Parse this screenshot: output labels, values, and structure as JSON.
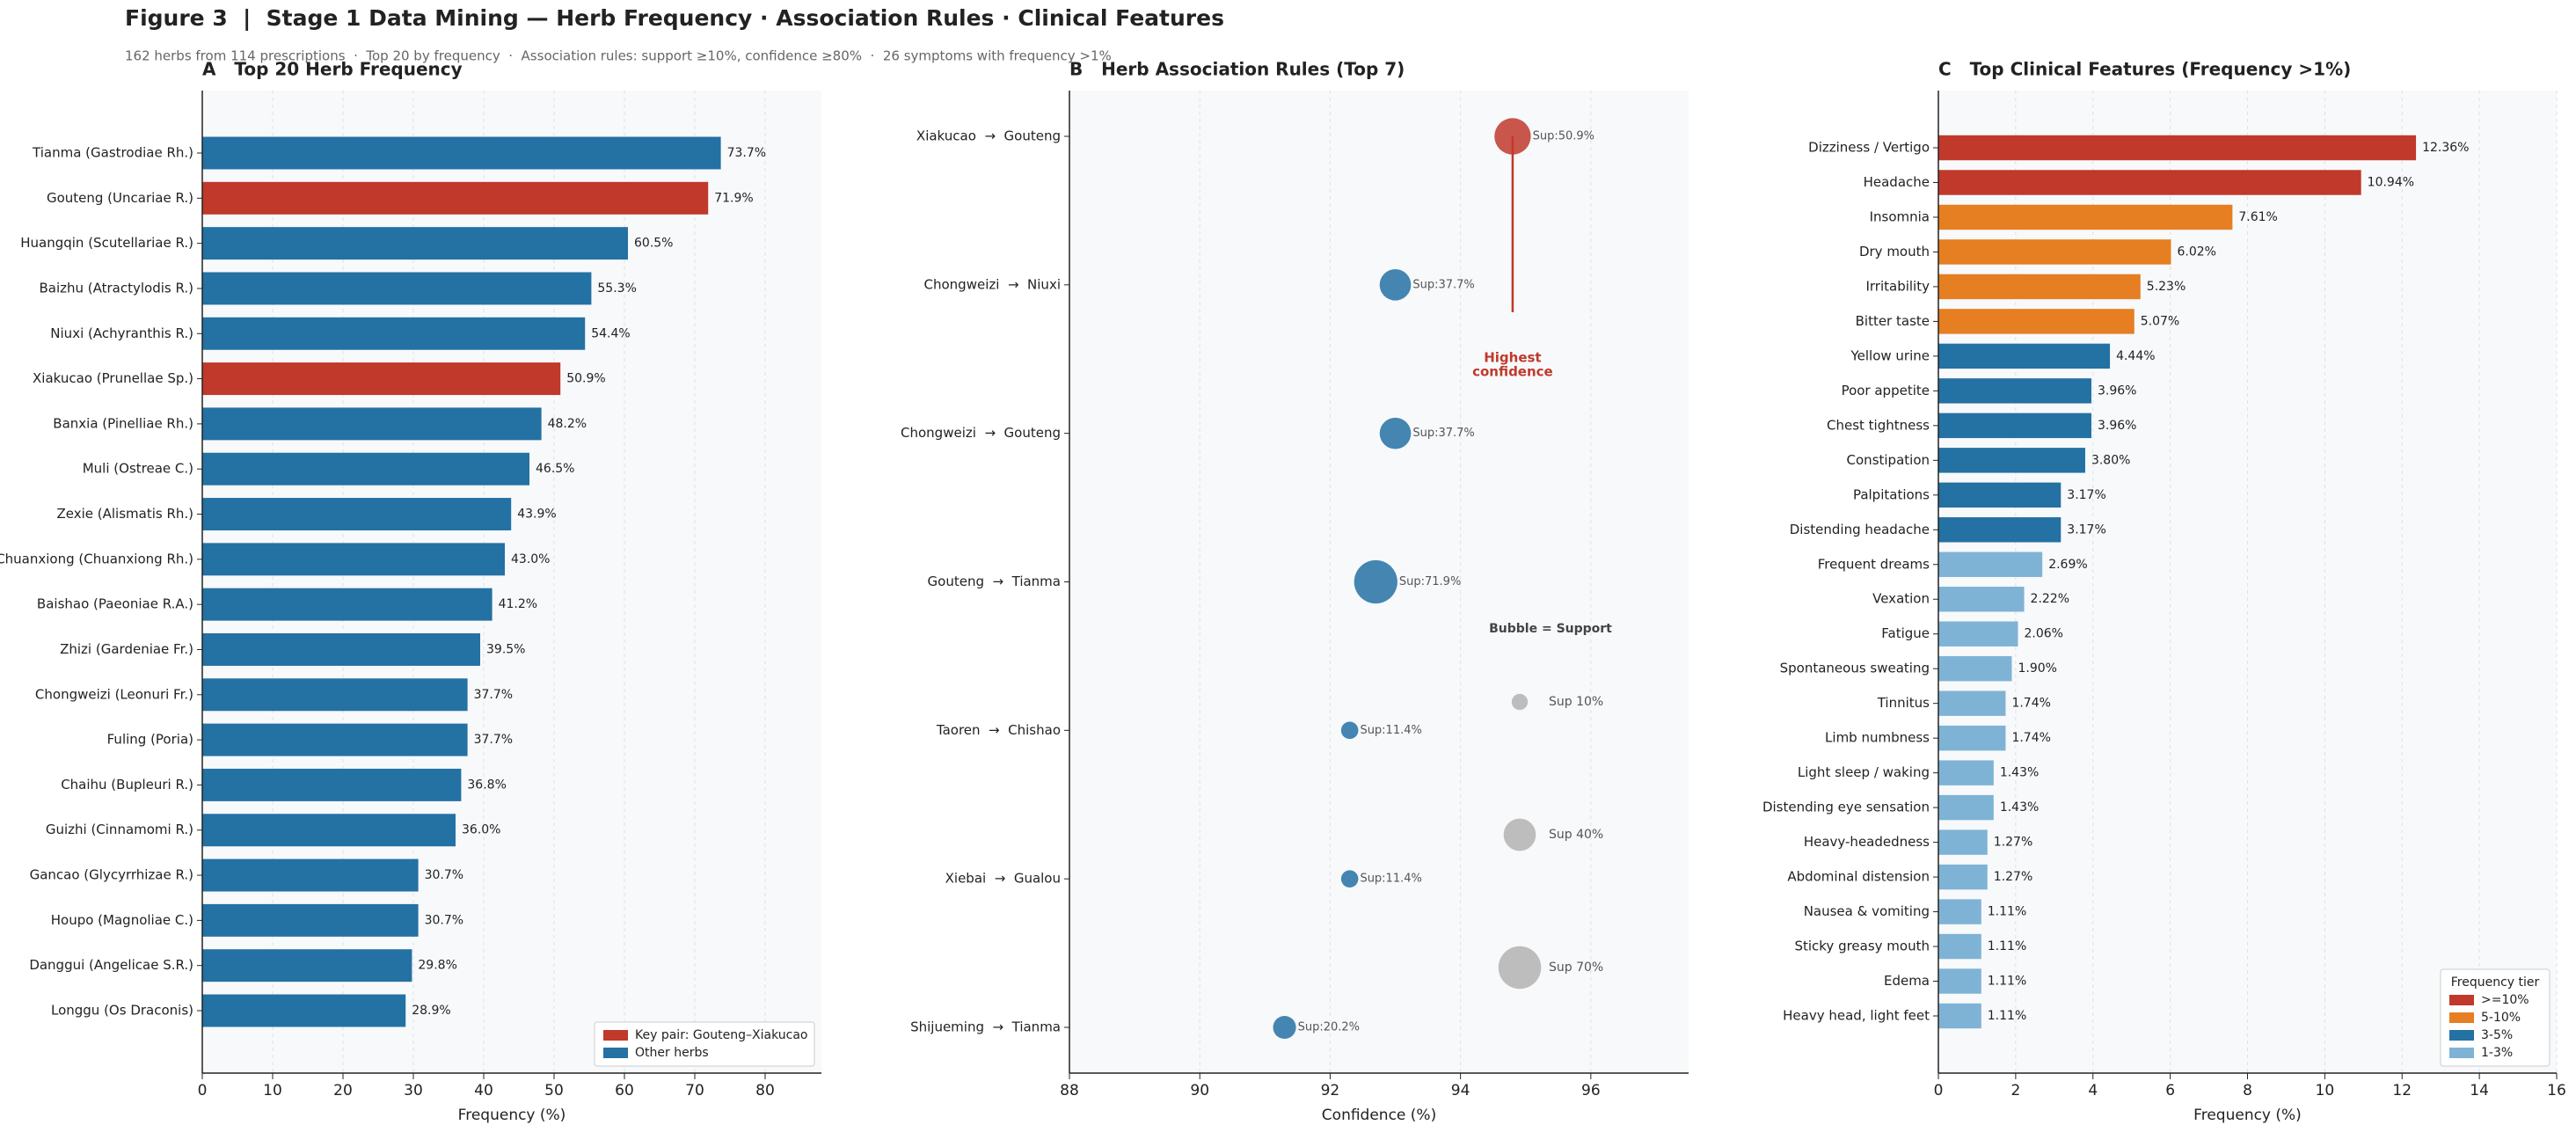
{
  "title": "Figure 3  |  Stage 1 Data Mining — Herb Frequency · Association Rules · Clinical Features",
  "subtitle": "162 herbs from 114 prescriptions  ·  Top 20 by frequency  ·  Association rules: support ≥10%, confidence ≥80%  ·  26 symptoms with frequency >1%",
  "chart_data": [
    {
      "type": "barh",
      "title": "A   Top 20 Herb Frequency",
      "xlabel": "Frequency (%)",
      "categories": [
        "Tianma (Gastrodiae Rh.)",
        "Gouteng (Uncariae R.)",
        "Huangqin (Scutellariae R.)",
        "Baizhu (Atractylodis R.)",
        "Niuxi (Achyranthis R.)",
        "Xiakucao (Prunellae Sp.)",
        "Banxia (Pinelliae Rh.)",
        "Muli (Ostreae C.)",
        "Zexie (Alismatis Rh.)",
        "Chuanxiong (Chuanxiong Rh.)",
        "Baishao (Paeoniae R.A.)",
        "Zhizi (Gardeniae Fr.)",
        "Chongweizi (Leonuri Fr.)",
        "Fuling (Poria)",
        "Chaihu (Bupleuri R.)",
        "Guizhi (Cinnamomi R.)",
        "Gancao (Glycyrrhizae R.)",
        "Houpo (Magnoliae C.)",
        "Danggui (Angelicae S.R.)",
        "Longgu (Os Draconis)"
      ],
      "values": [
        73.7,
        71.9,
        60.5,
        55.3,
        54.4,
        50.9,
        48.2,
        46.5,
        43.9,
        43.0,
        41.2,
        39.5,
        37.7,
        37.7,
        36.8,
        36.0,
        30.7,
        30.7,
        29.8,
        28.9
      ],
      "value_labels": [
        "73.7%",
        "71.9%",
        "60.5%",
        "55.3%",
        "54.4%",
        "50.9%",
        "48.2%",
        "46.5%",
        "43.9%",
        "43.0%",
        "41.2%",
        "39.5%",
        "37.7%",
        "37.7%",
        "36.8%",
        "36.0%",
        "30.7%",
        "30.7%",
        "29.8%",
        "28.9%"
      ],
      "colors": [
        "#2471a3",
        "#c0392b",
        "#2471a3",
        "#2471a3",
        "#2471a3",
        "#c0392b",
        "#2471a3",
        "#2471a3",
        "#2471a3",
        "#2471a3",
        "#2471a3",
        "#2471a3",
        "#2471a3",
        "#2471a3",
        "#2471a3",
        "#2471a3",
        "#2471a3",
        "#2471a3",
        "#2471a3",
        "#2471a3"
      ],
      "legend": [
        {
          "name": "Key pair: Gouteng–Xiakucao",
          "color": "#c0392b"
        },
        {
          "name": "Other herbs",
          "color": "#2471a3"
        }
      ],
      "legend_corner": "lower right",
      "xlim": [
        0,
        88
      ],
      "xticks": [
        0,
        10,
        20,
        30,
        40,
        50,
        60,
        70,
        80
      ],
      "grid": true
    },
    {
      "type": "scatter",
      "title": "B   Herb Association Rules (Top 7)",
      "xlabel": "Confidence (%)",
      "categories": [
        "Xiakucao  →  Gouteng",
        "Chongweizi  →  Niuxi",
        "Chongweizi  →  Gouteng",
        "Gouteng  →  Tianma",
        "Taoren  →  Chishao",
        "Xiebai  →  Gualou",
        "Shijueming  →  Tianma"
      ],
      "values": [
        94.8,
        93.0,
        93.0,
        92.7,
        92.3,
        92.3,
        91.3
      ],
      "sizes": [
        50.9,
        37.7,
        37.7,
        71.9,
        11.4,
        11.4,
        20.2
      ],
      "size_labels": [
        "Sup:50.9%",
        "Sup:37.7%",
        "Sup:37.7%",
        "Sup:71.9%",
        "Sup:11.4%",
        "Sup:11.4%",
        "Sup:20.2%"
      ],
      "colors": [
        "#c0392b",
        "#2471a3",
        "#2471a3",
        "#2471a3",
        "#2471a3",
        "#2471a3",
        "#2471a3"
      ],
      "annotation_lines": [
        "Highest",
        "confidence"
      ],
      "annotation_color": "#c0392b",
      "size_legend_title": "Bubble = Support",
      "size_legend": [
        {
          "value": 10,
          "label": "Sup 10%"
        },
        {
          "value": 40,
          "label": "Sup 40%"
        },
        {
          "value": 70,
          "label": "Sup 70%"
        }
      ],
      "size_legend_color": "#bdbdbd",
      "xlim": [
        88,
        97.5
      ],
      "xticks": [
        88,
        90,
        92,
        94,
        96
      ],
      "grid": true
    },
    {
      "type": "barh",
      "title": "C   Top Clinical Features (Frequency >1%)",
      "xlabel": "Frequency (%)",
      "categories": [
        "Dizziness / Vertigo",
        "Headache",
        "Insomnia",
        "Dry mouth",
        "Irritability",
        "Bitter taste",
        "Yellow urine",
        "Poor appetite",
        "Chest tightness",
        "Constipation",
        "Palpitations",
        "Distending headache",
        "Frequent dreams",
        "Vexation",
        "Fatigue",
        "Spontaneous sweating",
        "Tinnitus",
        "Limb numbness",
        "Light sleep / waking",
        "Distending eye sensation",
        "Heavy-headedness",
        "Abdominal distension",
        "Nausea & vomiting",
        "Sticky greasy mouth",
        "Edema",
        "Heavy head, light feet"
      ],
      "values": [
        12.36,
        10.94,
        7.61,
        6.02,
        5.23,
        5.07,
        4.44,
        3.96,
        3.96,
        3.8,
        3.17,
        3.17,
        2.69,
        2.22,
        2.06,
        1.9,
        1.74,
        1.74,
        1.43,
        1.43,
        1.27,
        1.27,
        1.11,
        1.11,
        1.11,
        1.11
      ],
      "value_labels": [
        "12.36%",
        "10.94%",
        "7.61%",
        "6.02%",
        "5.23%",
        "5.07%",
        "4.44%",
        "3.96%",
        "3.96%",
        "3.80%",
        "3.17%",
        "3.17%",
        "2.69%",
        "2.22%",
        "2.06%",
        "1.90%",
        "1.74%",
        "1.74%",
        "1.43%",
        "1.43%",
        "1.27%",
        "1.27%",
        "1.11%",
        "1.11%",
        "1.11%",
        "1.11%"
      ],
      "colors": [
        "#c0392b",
        "#c0392b",
        "#e67e22",
        "#e67e22",
        "#e67e22",
        "#e67e22",
        "#2471a3",
        "#2471a3",
        "#2471a3",
        "#2471a3",
        "#2471a3",
        "#2471a3",
        "#7fb3d5",
        "#7fb3d5",
        "#7fb3d5",
        "#7fb3d5",
        "#7fb3d5",
        "#7fb3d5",
        "#7fb3d5",
        "#7fb3d5",
        "#7fb3d5",
        "#7fb3d5",
        "#7fb3d5",
        "#7fb3d5",
        "#7fb3d5",
        "#7fb3d5"
      ],
      "legend_title": "Frequency tier",
      "legend": [
        {
          "name": ">=10%",
          "color": "#c0392b"
        },
        {
          "name": "5-10%",
          "color": "#e67e22"
        },
        {
          "name": "3-5%",
          "color": "#2471a3"
        },
        {
          "name": "1-3%",
          "color": "#7fb3d5"
        }
      ],
      "legend_corner": "lower right",
      "xlim": [
        0,
        16
      ],
      "xticks": [
        0,
        2,
        4,
        6,
        8,
        10,
        12,
        14,
        16
      ],
      "grid": true
    }
  ]
}
